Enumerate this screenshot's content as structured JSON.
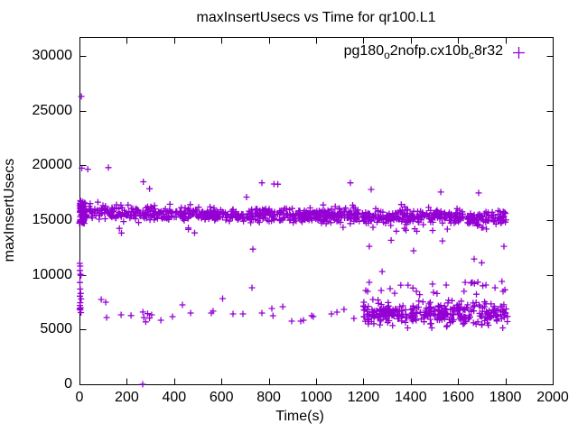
{
  "chart_data": {
    "type": "scatter",
    "title": "maxInsertUsecs vs Time for qr100.L1",
    "xlabel": "Time(s)",
    "ylabel": "maxInsertUsecs",
    "xlim": [
      0,
      2000
    ],
    "ylim": [
      0,
      31700
    ],
    "xticks": [
      0,
      200,
      400,
      600,
      800,
      1000,
      1200,
      1400,
      1600,
      1800,
      2000
    ],
    "yticks": [
      0,
      5000,
      10000,
      15000,
      20000,
      25000,
      30000
    ],
    "grid": false,
    "legend_position": "top-right-inside",
    "marker": "plus",
    "marker_color": "#9400d3",
    "axis_color": "#000000",
    "series_label_plain": "pg180o2nofp.cx10bc8r32",
    "series_label_parts": [
      {
        "text": "pg180"
      },
      {
        "text": "o",
        "subscript": true
      },
      {
        "text": "2nofp.cx10b"
      },
      {
        "text": "c",
        "subscript": true
      },
      {
        "text": "8r32"
      }
    ],
    "random_seed": 7,
    "clusters": [
      {
        "name": "upper-band",
        "count": 960,
        "x_range": [
          4,
          1812
        ],
        "y_mean_start": 15750,
        "y_mean_end": 15150,
        "y_sigma": 320,
        "y_clamp": [
          14050,
          16850
        ]
      },
      {
        "name": "upper-band-left-edge",
        "count": 55,
        "x_range": [
          0,
          22
        ],
        "y_range": [
          14700,
          16800
        ]
      },
      {
        "name": "below-band-sparse",
        "count": 16,
        "x_range": [
          120,
          1795
        ],
        "y_range": [
          13750,
          14400
        ]
      },
      {
        "name": "lower-dense-right",
        "count": 340,
        "x_range": [
          1198,
          1812
        ],
        "y_mean": 6450,
        "y_sigma": 520,
        "y_clamp": [
          5150,
          8100
        ]
      },
      {
        "name": "lower-mid-right",
        "count": 14,
        "x_range": [
          1350,
          1810
        ],
        "y_range": [
          8100,
          9550
        ]
      }
    ],
    "points": [
      [
        8,
        26300
      ],
      [
        10,
        19750
      ],
      [
        35,
        19650
      ],
      [
        122,
        19800
      ],
      [
        270,
        18500
      ],
      [
        296,
        17870
      ],
      [
        706,
        17100
      ],
      [
        771,
        18400
      ],
      [
        822,
        18300
      ],
      [
        838,
        18280
      ],
      [
        1145,
        18400
      ],
      [
        1233,
        17800
      ],
      [
        1527,
        17560
      ],
      [
        1687,
        17480
      ],
      [
        733,
        12350
      ],
      [
        1225,
        12600
      ],
      [
        1279,
        10300
      ],
      [
        1317,
        13150
      ],
      [
        1412,
        12200
      ],
      [
        1534,
        13100
      ],
      [
        1668,
        11450
      ],
      [
        1700,
        11100
      ],
      [
        1794,
        12600
      ],
      [
        1,
        11050
      ],
      [
        3,
        10800
      ],
      [
        2,
        10400
      ],
      [
        4,
        10050
      ],
      [
        6,
        9950
      ],
      [
        2,
        9300
      ],
      [
        3,
        8700
      ],
      [
        5,
        8300
      ],
      [
        2,
        8050
      ],
      [
        7,
        7800
      ],
      [
        3,
        7450
      ],
      [
        2,
        7200
      ],
      [
        5,
        7000
      ],
      [
        3,
        6800
      ],
      [
        6,
        6550
      ],
      [
        1,
        6900
      ],
      [
        92,
        7750
      ],
      [
        111,
        7500
      ],
      [
        115,
        6100
      ],
      [
        176,
        6350
      ],
      [
        218,
        6280
      ],
      [
        268,
        6600
      ],
      [
        272,
        6100
      ],
      [
        280,
        5700
      ],
      [
        288,
        6450
      ],
      [
        296,
        6050
      ],
      [
        305,
        6350
      ],
      [
        344,
        5850
      ],
      [
        393,
        6180
      ],
      [
        435,
        7250
      ],
      [
        470,
        6510
      ],
      [
        557,
        6510
      ],
      [
        565,
        6680
      ],
      [
        605,
        7830
      ],
      [
        649,
        6430
      ],
      [
        691,
        6430
      ],
      [
        729,
        8820
      ],
      [
        771,
        6510
      ],
      [
        813,
        6920
      ],
      [
        818,
        6260
      ],
      [
        859,
        7090
      ],
      [
        897,
        5770
      ],
      [
        935,
        5770
      ],
      [
        947,
        5850
      ],
      [
        981,
        6260
      ],
      [
        988,
        6180
      ],
      [
        1065,
        6430
      ],
      [
        1088,
        6590
      ],
      [
        1118,
        6840
      ],
      [
        1160,
        6020
      ],
      [
        1202,
        7500
      ],
      [
        1210,
        8570
      ],
      [
        1218,
        8490
      ],
      [
        1225,
        9310
      ],
      [
        1240,
        7750
      ],
      [
        1275,
        8570
      ],
      [
        1313,
        8740
      ],
      [
        1332,
        8320
      ],
      [
        1424,
        8490
      ],
      [
        1496,
        8400
      ],
      [
        1550,
        9070
      ],
      [
        1630,
        9310
      ],
      [
        1660,
        9310
      ],
      [
        1718,
        9070
      ],
      [
        1756,
        8820
      ],
      [
        1790,
        8490
      ],
      [
        267,
        0
      ]
    ]
  }
}
